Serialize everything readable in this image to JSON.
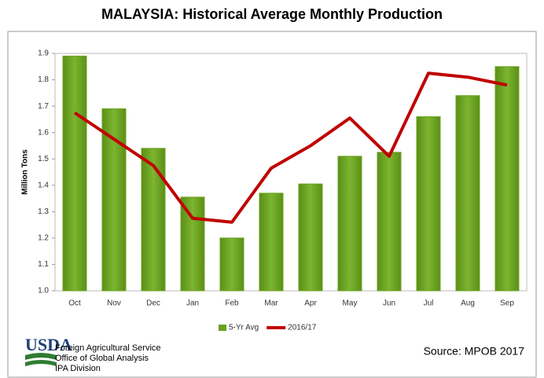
{
  "chart_data": {
    "type": "bar",
    "title": "MALAYSIA: Historical Average Monthly Production",
    "y_label": "Million Tons",
    "categories": [
      "Oct",
      "Nov",
      "Dec",
      "Jan",
      "Feb",
      "Mar",
      "Apr",
      "May",
      "Jun",
      "Jul",
      "Aug",
      "Sep"
    ],
    "series": [
      {
        "name": "5-Yr Avg",
        "type": "bar",
        "color": "#6aa121",
        "values": [
          1.89,
          1.69,
          1.54,
          1.355,
          1.2,
          1.37,
          1.405,
          1.51,
          1.525,
          1.66,
          1.74,
          1.85
        ]
      },
      {
        "name": "2016/17",
        "type": "line",
        "color": "#c00000",
        "values": [
          1.675,
          1.575,
          1.475,
          1.275,
          1.26,
          1.465,
          1.55,
          1.655,
          1.51,
          1.825,
          1.81,
          1.78
        ]
      }
    ],
    "ylim": [
      1.0,
      1.9
    ],
    "yticks": [
      {
        "value": 1.0,
        "label": "1.0"
      },
      1.1,
      1.2,
      1.3,
      1.4,
      1.5,
      1.6,
      1.7,
      1.8,
      1.9
    ],
    "grid": false,
    "legend": "bottom",
    "logo": "USDA",
    "agency_lines": [
      "Foreign Agricultural Service",
      "Office of Global Analysis",
      "IPA Division"
    ],
    "source": "Source: MPOB 2017"
  }
}
